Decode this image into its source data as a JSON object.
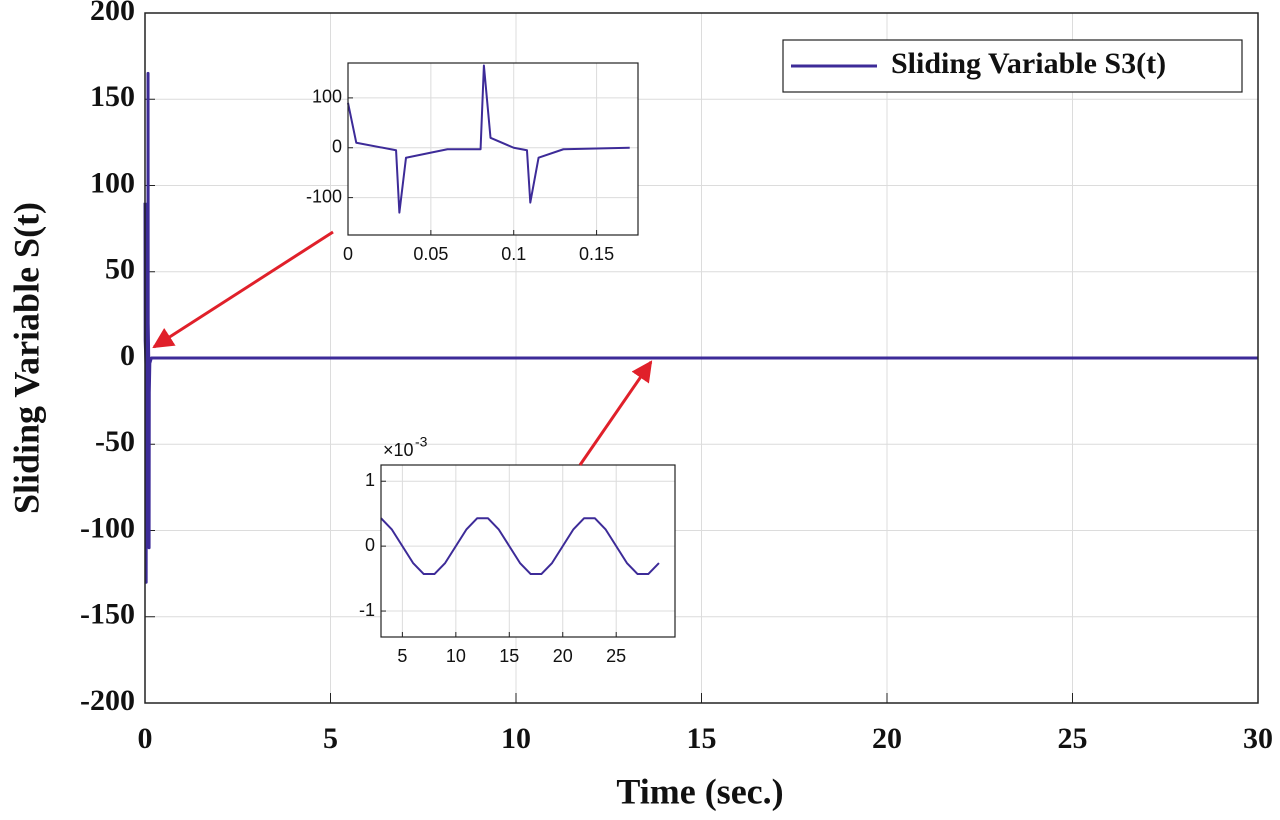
{
  "chart_data": [
    {
      "type": "line",
      "xlabel": "Time (sec.)",
      "ylabel": "Sliding Variable S(t)",
      "x": [
        0,
        0.005,
        0.029,
        0.031,
        0.035,
        0.06,
        0.08,
        0.082,
        0.086,
        0.1,
        0.108,
        0.11,
        0.115,
        0.13,
        0.17,
        30
      ],
      "series": [
        {
          "name": "Sliding Variable S3(t)",
          "color": "#3d2b98",
          "values": [
            90,
            10,
            -5,
            -130,
            -20,
            -3,
            -3,
            165,
            20,
            0,
            -5,
            -110,
            -20,
            -3,
            0,
            0
          ]
        }
      ],
      "xlim": [
        0,
        30
      ],
      "xticks": [
        0,
        5,
        10,
        15,
        20,
        25,
        30
      ],
      "ylim": [
        -200,
        200
      ],
      "yticks": [
        -200,
        -150,
        -100,
        -50,
        0,
        50,
        100,
        150,
        200
      ],
      "grid": true,
      "legend": "upper right"
    },
    {
      "type": "line",
      "x": [
        0,
        0.005,
        0.029,
        0.031,
        0.035,
        0.06,
        0.08,
        0.082,
        0.086,
        0.1,
        0.108,
        0.11,
        0.115,
        0.13,
        0.17
      ],
      "series": [
        {
          "color": "#3d2b98",
          "values": [
            90,
            10,
            -5,
            -130,
            -20,
            -3,
            -3,
            165,
            20,
            0,
            -5,
            -110,
            -20,
            -3,
            0
          ]
        }
      ],
      "xlim": [
        0,
        0.175
      ],
      "xticks": [
        0,
        0.05,
        0.1,
        0.15
      ],
      "ylim": [
        -175,
        170
      ],
      "yticks": [
        -100,
        0,
        100
      ],
      "grid": true
    },
    {
      "type": "line",
      "x": [
        3,
        4,
        5,
        6,
        7,
        8,
        9,
        10,
        11,
        12,
        13,
        14,
        15,
        16,
        17,
        18,
        19,
        20,
        21,
        22,
        23,
        24,
        25,
        26,
        27,
        28,
        29
      ],
      "series": [
        {
          "color": "#3d2b98",
          "values": [
            0.43,
            0.26,
            0,
            -0.26,
            -0.43,
            -0.43,
            -0.26,
            0,
            0.26,
            0.43,
            0.43,
            0.26,
            0,
            -0.26,
            -0.43,
            -0.43,
            -0.26,
            0,
            0.26,
            0.43,
            0.43,
            0.26,
            0,
            -0.26,
            -0.43,
            -0.43,
            -0.26
          ]
        }
      ],
      "xlim": [
        3,
        30.5
      ],
      "xticks": [
        5,
        10,
        15,
        20,
        25
      ],
      "ylim": [
        -1.4,
        1.25
      ],
      "yticks": [
        -1,
        0,
        1
      ],
      "grid": true,
      "y_multiplier": {
        "base": "×10",
        "exponent": "-3"
      }
    }
  ]
}
